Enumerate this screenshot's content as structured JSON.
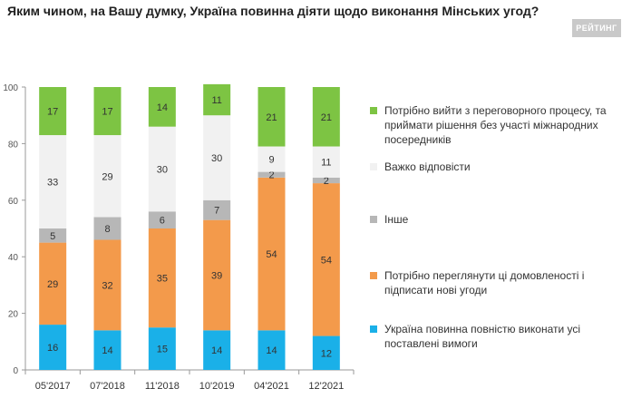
{
  "title": "Яким чином, на Вашу думку, Україна повинна діяти щодо виконання Мінських угод?",
  "logo": "РЕЙТИНГ",
  "chart_data": {
    "type": "bar",
    "stacked": true,
    "categories": [
      "05'2017",
      "07'2018",
      "11'2018",
      "10'2019",
      "04'2021",
      "12'2021"
    ],
    "ylim": [
      0,
      100
    ],
    "yticks": [
      0,
      20,
      40,
      60,
      80,
      100
    ],
    "grid": false,
    "legend_position": "right",
    "series": [
      {
        "name": "Україна повинна повністю виконати усі поставлені вимоги",
        "color": "#1ab0e8",
        "values": [
          16,
          14,
          15,
          14,
          14,
          12
        ]
      },
      {
        "name": "Потрібно переглянути ці домовленості і підписати нові угоди",
        "color": "#f39a4b",
        "values": [
          29,
          32,
          35,
          39,
          54,
          54
        ]
      },
      {
        "name": "Інше",
        "color": "#b7b7b7",
        "values": [
          5,
          8,
          6,
          7,
          2,
          2
        ]
      },
      {
        "name": "Важко відповісти",
        "color": "#f1f1f1",
        "values": [
          33,
          29,
          30,
          30,
          9,
          11
        ]
      },
      {
        "name": "Потрібно вийти з переговорного процесу, та приймати рішення без участі міжнародних посередників",
        "color": "#7dc443",
        "values": [
          17,
          17,
          14,
          11,
          21,
          21
        ]
      }
    ]
  }
}
